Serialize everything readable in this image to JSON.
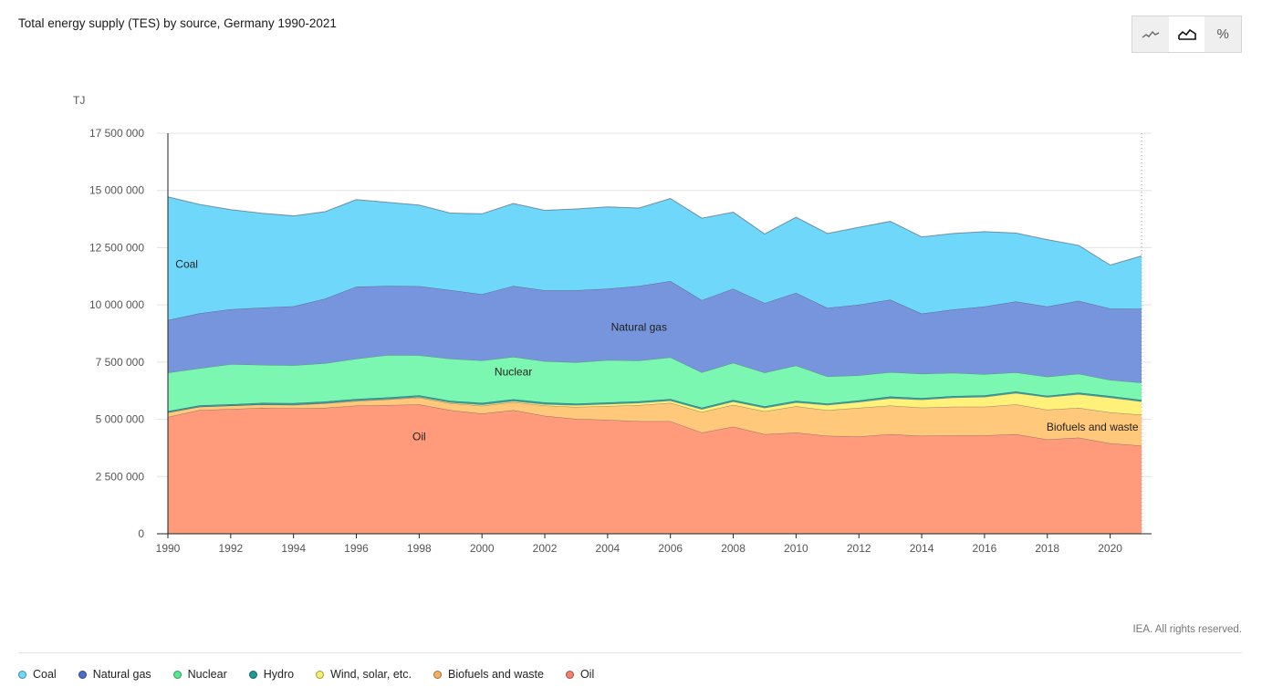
{
  "title": "Total energy supply (TES) by source, Germany 1990-2021",
  "toolbar": {
    "buttons": [
      {
        "name": "line-chart-button",
        "icon": "line-chart-icon",
        "active": false
      },
      {
        "name": "area-chart-button",
        "icon": "area-chart-icon",
        "active": true
      },
      {
        "name": "percent-button",
        "icon": "percent-icon",
        "label": "%",
        "active": false
      }
    ]
  },
  "credit": "IEA. All rights reserved.",
  "chart_data": {
    "type": "area",
    "stacked": true,
    "title": "Total energy supply (TES) by source, Germany 1990-2021",
    "ylabel": "TJ",
    "xlabel": "",
    "ylim": [
      0,
      17500000
    ],
    "yticks": [
      0,
      2500000,
      5000000,
      7500000,
      10000000,
      12500000,
      15000000,
      17500000
    ],
    "ytick_labels": [
      "0",
      "2 500 000",
      "5 000 000",
      "7 500 000",
      "10 000 000",
      "12 500 000",
      "15 000 000",
      "17 500 000"
    ],
    "xtick_labels": [
      "1990",
      "1992",
      "1994",
      "1996",
      "1998",
      "2000",
      "2002",
      "2004",
      "2006",
      "2008",
      "2010",
      "2012",
      "2014",
      "2016",
      "2018",
      "2020"
    ],
    "grid": true,
    "legend_position": "bottom",
    "x": [
      1990,
      1991,
      1992,
      1993,
      1994,
      1995,
      1996,
      1997,
      1998,
      1999,
      2000,
      2001,
      2002,
      2003,
      2004,
      2005,
      2006,
      2007,
      2008,
      2009,
      2010,
      2011,
      2012,
      2013,
      2014,
      2015,
      2016,
      2017,
      2018,
      2019,
      2020,
      2021
    ],
    "series": [
      {
        "name": "Oil",
        "color": "#ff9a7b",
        "values": [
          5100000,
          5400000,
          5450000,
          5500000,
          5480000,
          5500000,
          5600000,
          5620000,
          5650000,
          5400000,
          5250000,
          5400000,
          5150000,
          5020000,
          4980000,
          4920000,
          4920000,
          4420000,
          4680000,
          4350000,
          4420000,
          4280000,
          4250000,
          4350000,
          4280000,
          4300000,
          4300000,
          4350000,
          4120000,
          4200000,
          3950000,
          3850000
        ],
        "label": "Oil"
      },
      {
        "name": "Biofuels and waste",
        "color": "#ffc87a",
        "values": [
          200000,
          150000,
          150000,
          150000,
          150000,
          200000,
          200000,
          250000,
          300000,
          300000,
          340000,
          350000,
          450000,
          520000,
          600000,
          700000,
          800000,
          900000,
          950000,
          1000000,
          1150000,
          1120000,
          1250000,
          1250000,
          1230000,
          1250000,
          1250000,
          1300000,
          1300000,
          1300000,
          1350000,
          1350000
        ],
        "label": "Biofuels and waste"
      },
      {
        "name": "Wind, solar, etc.",
        "color": "#fff17a",
        "values": [
          0,
          0,
          0,
          0,
          10000,
          10000,
          20000,
          20000,
          30000,
          40000,
          50000,
          50000,
          60000,
          80000,
          90000,
          100000,
          100000,
          120000,
          150000,
          150000,
          170000,
          230000,
          260000,
          320000,
          350000,
          400000,
          430000,
          500000,
          550000,
          600000,
          650000,
          580000
        ],
        "label": ""
      },
      {
        "name": "Hydro",
        "color": "#2aa3a0",
        "values": [
          60000,
          60000,
          60000,
          70000,
          70000,
          70000,
          70000,
          70000,
          70000,
          70000,
          80000,
          80000,
          80000,
          70000,
          70000,
          70000,
          70000,
          70000,
          70000,
          70000,
          70000,
          60000,
          70000,
          80000,
          70000,
          70000,
          70000,
          70000,
          60000,
          70000,
          70000,
          70000
        ],
        "label": ""
      },
      {
        "name": "Nuclear",
        "color": "#7cf7b1",
        "values": [
          1680000,
          1620000,
          1750000,
          1660000,
          1650000,
          1670000,
          1760000,
          1850000,
          1750000,
          1840000,
          1850000,
          1850000,
          1800000,
          1800000,
          1850000,
          1780000,
          1820000,
          1540000,
          1620000,
          1470000,
          1540000,
          1180000,
          1090000,
          1060000,
          1060000,
          1010000,
          920000,
          830000,
          830000,
          820000,
          700000,
          750000
        ],
        "label": "Nuclear"
      },
      {
        "name": "Natural gas",
        "color": "#7695dc",
        "values": [
          2300000,
          2400000,
          2400000,
          2500000,
          2580000,
          2820000,
          3150000,
          3020000,
          3020000,
          3000000,
          2900000,
          3100000,
          3100000,
          3150000,
          3120000,
          3260000,
          3330000,
          3160000,
          3240000,
          3040000,
          3180000,
          3000000,
          3090000,
          3170000,
          2630000,
          2770000,
          2960000,
          3100000,
          3070000,
          3190000,
          3120000,
          3230000
        ],
        "label": "Natural gas"
      },
      {
        "name": "Coal",
        "color": "#6fd8fa",
        "values": [
          5380000,
          4760000,
          4350000,
          4120000,
          3950000,
          3800000,
          3800000,
          3650000,
          3540000,
          3360000,
          3510000,
          3600000,
          3490000,
          3550000,
          3570000,
          3400000,
          3610000,
          3580000,
          3340000,
          3020000,
          3300000,
          3250000,
          3380000,
          3420000,
          3350000,
          3320000,
          3270000,
          2990000,
          2920000,
          2420000,
          1900000,
          2310000
        ],
        "label": "Coal"
      }
    ]
  },
  "legend": [
    {
      "label": "Coal",
      "color": "#6fd8fa"
    },
    {
      "label": "Natural gas",
      "color": "#4a6fc8"
    },
    {
      "label": "Nuclear",
      "color": "#57e890"
    },
    {
      "label": "Hydro",
      "color": "#1f9994"
    },
    {
      "label": "Wind, solar, etc.",
      "color": "#f7ee6a"
    },
    {
      "label": "Biofuels and waste",
      "color": "#f5b060"
    },
    {
      "label": "Oil",
      "color": "#f8806a"
    }
  ]
}
